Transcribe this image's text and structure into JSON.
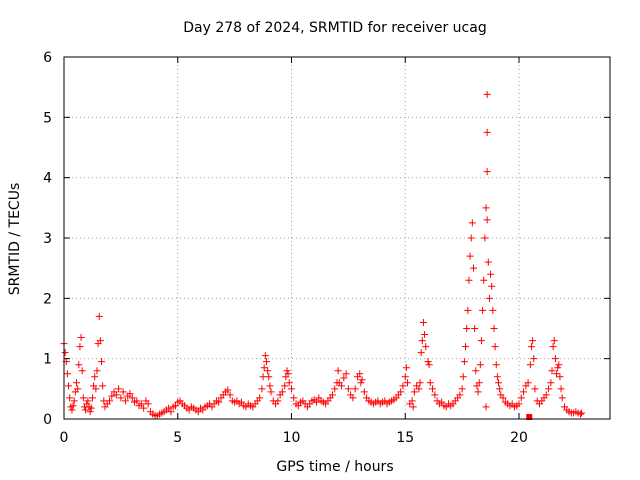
{
  "chart_data": {
    "type": "scatter",
    "title": "Day 278 of 2024, SRMTID for receiver ucag",
    "xlabel": "GPS time / hours",
    "ylabel": "SRMTID / TECUs",
    "xlim": [
      0,
      24
    ],
    "ylim": [
      0,
      6
    ],
    "xticks": [
      "0",
      "5",
      "10",
      "15",
      "20"
    ],
    "yticks": [
      "0",
      "1",
      "2",
      "3",
      "4",
      "5",
      "6"
    ],
    "grid": true,
    "marker": "plus",
    "color": "#ff0000",
    "series": [
      {
        "name": "SRMTID",
        "points": [
          [
            0.0,
            1.25
          ],
          [
            0.05,
            1.1
          ],
          [
            0.1,
            0.95
          ],
          [
            0.15,
            0.75
          ],
          [
            0.2,
            0.55
          ],
          [
            0.25,
            0.35
          ],
          [
            0.3,
            0.2
          ],
          [
            0.35,
            0.15
          ],
          [
            0.4,
            0.22
          ],
          [
            0.45,
            0.3
          ],
          [
            0.5,
            0.45
          ],
          [
            0.55,
            0.6
          ],
          [
            0.6,
            0.5
          ],
          [
            0.65,
            0.9
          ],
          [
            0.7,
            1.2
          ],
          [
            0.75,
            1.35
          ],
          [
            0.8,
            0.8
          ],
          [
            0.85,
            0.35
          ],
          [
            0.9,
            0.2
          ],
          [
            0.95,
            0.15
          ],
          [
            1.0,
            0.25
          ],
          [
            1.05,
            0.3
          ],
          [
            1.1,
            0.2
          ],
          [
            1.15,
            0.12
          ],
          [
            1.2,
            0.18
          ],
          [
            1.25,
            0.35
          ],
          [
            1.3,
            0.55
          ],
          [
            1.35,
            0.7
          ],
          [
            1.4,
            0.5
          ],
          [
            1.45,
            0.8
          ],
          [
            1.5,
            1.25
          ],
          [
            1.55,
            1.7
          ],
          [
            1.6,
            1.3
          ],
          [
            1.65,
            0.95
          ],
          [
            1.7,
            0.55
          ],
          [
            1.75,
            0.3
          ],
          [
            1.8,
            0.2
          ],
          [
            1.9,
            0.25
          ],
          [
            2.0,
            0.3
          ],
          [
            2.1,
            0.38
          ],
          [
            2.2,
            0.45
          ],
          [
            2.3,
            0.4
          ],
          [
            2.4,
            0.5
          ],
          [
            2.5,
            0.35
          ],
          [
            2.6,
            0.45
          ],
          [
            2.7,
            0.3
          ],
          [
            2.8,
            0.38
          ],
          [
            2.9,
            0.42
          ],
          [
            3.0,
            0.35
          ],
          [
            3.1,
            0.28
          ],
          [
            3.2,
            0.3
          ],
          [
            3.3,
            0.22
          ],
          [
            3.4,
            0.25
          ],
          [
            3.5,
            0.18
          ],
          [
            3.6,
            0.3
          ],
          [
            3.7,
            0.25
          ],
          [
            3.8,
            0.12
          ],
          [
            3.9,
            0.08
          ],
          [
            4.0,
            0.06
          ],
          [
            4.1,
            0.05
          ],
          [
            4.2,
            0.08
          ],
          [
            4.3,
            0.1
          ],
          [
            4.4,
            0.12
          ],
          [
            4.5,
            0.15
          ],
          [
            4.6,
            0.18
          ],
          [
            4.7,
            0.12
          ],
          [
            4.8,
            0.2
          ],
          [
            4.9,
            0.22
          ],
          [
            5.0,
            0.28
          ],
          [
            5.1,
            0.3
          ],
          [
            5.2,
            0.25
          ],
          [
            5.3,
            0.22
          ],
          [
            5.4,
            0.18
          ],
          [
            5.5,
            0.15
          ],
          [
            5.6,
            0.2
          ],
          [
            5.7,
            0.18
          ],
          [
            5.8,
            0.15
          ],
          [
            5.9,
            0.12
          ],
          [
            6.0,
            0.18
          ],
          [
            6.1,
            0.15
          ],
          [
            6.2,
            0.2
          ],
          [
            6.3,
            0.22
          ],
          [
            6.4,
            0.25
          ],
          [
            6.5,
            0.2
          ],
          [
            6.6,
            0.25
          ],
          [
            6.7,
            0.3
          ],
          [
            6.8,
            0.28
          ],
          [
            6.9,
            0.35
          ],
          [
            7.0,
            0.4
          ],
          [
            7.1,
            0.45
          ],
          [
            7.2,
            0.48
          ],
          [
            7.3,
            0.4
          ],
          [
            7.4,
            0.3
          ],
          [
            7.5,
            0.28
          ],
          [
            7.6,
            0.3
          ],
          [
            7.7,
            0.25
          ],
          [
            7.8,
            0.28
          ],
          [
            7.9,
            0.22
          ],
          [
            8.0,
            0.2
          ],
          [
            8.1,
            0.25
          ],
          [
            8.2,
            0.22
          ],
          [
            8.3,
            0.2
          ],
          [
            8.4,
            0.25
          ],
          [
            8.5,
            0.3
          ],
          [
            8.6,
            0.35
          ],
          [
            8.7,
            0.5
          ],
          [
            8.75,
            0.7
          ],
          [
            8.8,
            0.85
          ],
          [
            8.85,
            1.05
          ],
          [
            8.9,
            0.95
          ],
          [
            8.95,
            0.8
          ],
          [
            9.0,
            0.7
          ],
          [
            9.05,
            0.55
          ],
          [
            9.1,
            0.45
          ],
          [
            9.2,
            0.3
          ],
          [
            9.3,
            0.25
          ],
          [
            9.4,
            0.3
          ],
          [
            9.5,
            0.4
          ],
          [
            9.6,
            0.45
          ],
          [
            9.7,
            0.55
          ],
          [
            9.75,
            0.7
          ],
          [
            9.8,
            0.8
          ],
          [
            9.85,
            0.75
          ],
          [
            9.9,
            0.6
          ],
          [
            10.0,
            0.5
          ],
          [
            10.1,
            0.35
          ],
          [
            10.2,
            0.25
          ],
          [
            10.3,
            0.22
          ],
          [
            10.4,
            0.28
          ],
          [
            10.5,
            0.3
          ],
          [
            10.6,
            0.25
          ],
          [
            10.7,
            0.2
          ],
          [
            10.8,
            0.25
          ],
          [
            10.9,
            0.3
          ],
          [
            11.0,
            0.32
          ],
          [
            11.1,
            0.28
          ],
          [
            11.2,
            0.35
          ],
          [
            11.3,
            0.3
          ],
          [
            11.4,
            0.28
          ],
          [
            11.5,
            0.25
          ],
          [
            11.6,
            0.3
          ],
          [
            11.7,
            0.35
          ],
          [
            11.8,
            0.4
          ],
          [
            11.9,
            0.5
          ],
          [
            12.0,
            0.6
          ],
          [
            12.05,
            0.8
          ],
          [
            12.1,
            0.6
          ],
          [
            12.2,
            0.55
          ],
          [
            12.3,
            0.68
          ],
          [
            12.4,
            0.75
          ],
          [
            12.5,
            0.5
          ],
          [
            12.6,
            0.4
          ],
          [
            12.7,
            0.35
          ],
          [
            12.8,
            0.5
          ],
          [
            12.9,
            0.7
          ],
          [
            13.0,
            0.75
          ],
          [
            13.05,
            0.6
          ],
          [
            13.1,
            0.65
          ],
          [
            13.2,
            0.45
          ],
          [
            13.3,
            0.35
          ],
          [
            13.4,
            0.3
          ],
          [
            13.5,
            0.28
          ],
          [
            13.6,
            0.25
          ],
          [
            13.7,
            0.28
          ],
          [
            13.8,
            0.3
          ],
          [
            13.9,
            0.25
          ],
          [
            14.0,
            0.28
          ],
          [
            14.1,
            0.3
          ],
          [
            14.2,
            0.25
          ],
          [
            14.3,
            0.28
          ],
          [
            14.4,
            0.3
          ],
          [
            14.5,
            0.32
          ],
          [
            14.6,
            0.35
          ],
          [
            14.7,
            0.4
          ],
          [
            14.8,
            0.45
          ],
          [
            14.9,
            0.55
          ],
          [
            15.0,
            0.7
          ],
          [
            15.05,
            0.85
          ],
          [
            15.1,
            0.6
          ],
          [
            15.2,
            0.25
          ],
          [
            15.3,
            0.3
          ],
          [
            15.35,
            0.2
          ],
          [
            15.4,
            0.45
          ],
          [
            15.5,
            0.55
          ],
          [
            15.6,
            0.5
          ],
          [
            15.65,
            0.6
          ],
          [
            15.7,
            1.1
          ],
          [
            15.75,
            1.3
          ],
          [
            15.8,
            1.6
          ],
          [
            15.85,
            1.4
          ],
          [
            15.9,
            1.2
          ],
          [
            16.0,
            0.95
          ],
          [
            16.05,
            0.9
          ],
          [
            16.1,
            0.6
          ],
          [
            16.2,
            0.5
          ],
          [
            16.3,
            0.4
          ],
          [
            16.4,
            0.3
          ],
          [
            16.5,
            0.25
          ],
          [
            16.6,
            0.28
          ],
          [
            16.7,
            0.22
          ],
          [
            16.8,
            0.2
          ],
          [
            16.9,
            0.25
          ],
          [
            17.0,
            0.22
          ],
          [
            17.1,
            0.25
          ],
          [
            17.2,
            0.3
          ],
          [
            17.3,
            0.35
          ],
          [
            17.4,
            0.4
          ],
          [
            17.5,
            0.5
          ],
          [
            17.55,
            0.7
          ],
          [
            17.6,
            0.95
          ],
          [
            17.65,
            1.2
          ],
          [
            17.7,
            1.5
          ],
          [
            17.75,
            1.8
          ],
          [
            17.8,
            2.3
          ],
          [
            17.85,
            2.7
          ],
          [
            17.9,
            3.0
          ],
          [
            17.95,
            3.25
          ],
          [
            18.0,
            2.5
          ],
          [
            18.05,
            1.5
          ],
          [
            18.1,
            0.8
          ],
          [
            18.15,
            0.55
          ],
          [
            18.2,
            0.45
          ],
          [
            18.25,
            0.6
          ],
          [
            18.3,
            0.9
          ],
          [
            18.35,
            1.3
          ],
          [
            18.4,
            1.8
          ],
          [
            18.45,
            2.3
          ],
          [
            18.5,
            3.0
          ],
          [
            18.55,
            3.5
          ],
          [
            18.6,
            3.3
          ],
          [
            18.65,
            2.6
          ],
          [
            18.7,
            2.0
          ],
          [
            18.55,
            0.2
          ],
          [
            18.6,
            4.1
          ],
          [
            18.6,
            4.75
          ],
          [
            18.6,
            5.38
          ],
          [
            18.75,
            2.4
          ],
          [
            18.8,
            2.2
          ],
          [
            18.85,
            1.8
          ],
          [
            18.9,
            1.5
          ],
          [
            18.95,
            1.2
          ],
          [
            19.0,
            0.9
          ],
          [
            19.05,
            0.7
          ],
          [
            19.1,
            0.6
          ],
          [
            19.15,
            0.5
          ],
          [
            19.2,
            0.4
          ],
          [
            19.3,
            0.35
          ],
          [
            19.4,
            0.28
          ],
          [
            19.5,
            0.25
          ],
          [
            19.6,
            0.22
          ],
          [
            19.7,
            0.25
          ],
          [
            19.8,
            0.2
          ],
          [
            19.9,
            0.22
          ],
          [
            20.0,
            0.25
          ],
          [
            20.1,
            0.35
          ],
          [
            20.2,
            0.45
          ],
          [
            20.3,
            0.55
          ],
          [
            20.4,
            0.6
          ],
          [
            20.5,
            0.9
          ],
          [
            20.55,
            1.2
          ],
          [
            20.6,
            1.3
          ],
          [
            20.65,
            1.0
          ],
          [
            20.7,
            0.5
          ],
          [
            20.8,
            0.3
          ],
          [
            20.9,
            0.25
          ],
          [
            21.0,
            0.3
          ],
          [
            21.1,
            0.35
          ],
          [
            21.2,
            0.4
          ],
          [
            21.3,
            0.5
          ],
          [
            21.4,
            0.6
          ],
          [
            21.45,
            0.8
          ],
          [
            21.5,
            1.2
          ],
          [
            21.55,
            1.3
          ],
          [
            21.6,
            1.0
          ],
          [
            21.65,
            0.75
          ],
          [
            21.7,
            0.85
          ],
          [
            21.75,
            0.9
          ],
          [
            21.8,
            0.7
          ],
          [
            21.85,
            0.5
          ],
          [
            21.9,
            0.35
          ],
          [
            22.0,
            0.2
          ],
          [
            22.1,
            0.15
          ],
          [
            22.2,
            0.12
          ],
          [
            22.3,
            0.1
          ],
          [
            22.4,
            0.1
          ],
          [
            22.5,
            0.12
          ],
          [
            22.6,
            0.1
          ],
          [
            22.7,
            0.08
          ],
          [
            22.75,
            0.1
          ]
        ]
      }
    ],
    "outlier_squares": [
      [
        20.45,
        0.0
      ]
    ]
  }
}
